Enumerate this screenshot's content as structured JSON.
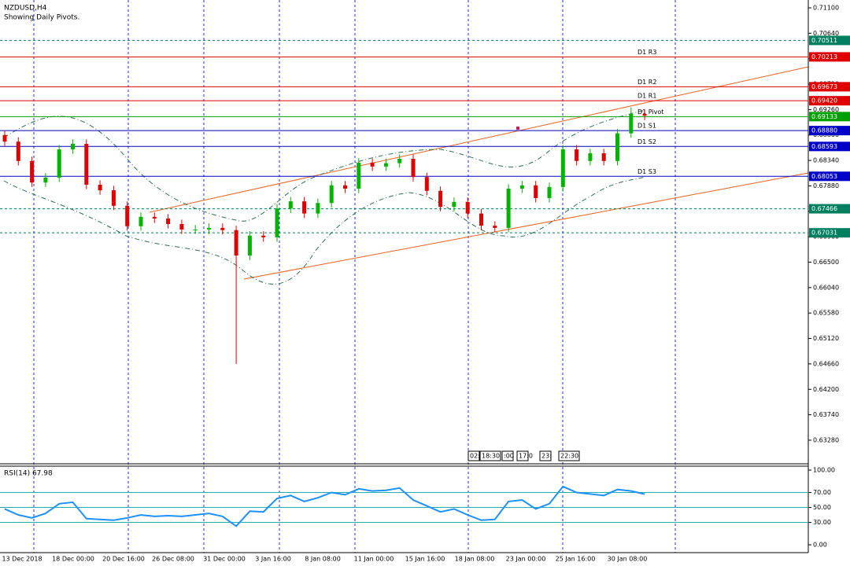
{
  "header": {
    "symbol": "NZDUSD,H4",
    "note": "Showing Daily Pivots."
  },
  "chart_data": {
    "type": "candlestick",
    "up_color": "#00b400",
    "down_color": "#e00000",
    "open": [
      0.688,
      0.6868,
      0.6833,
      0.6794,
      0.6803,
      0.6854,
      0.6864,
      0.679,
      0.678,
      0.6752,
      0.6715,
      0.6732,
      0.6729,
      0.6719,
      0.6709,
      0.6709,
      0.6712,
      0.6708,
      0.6662,
      0.6698,
      0.6695,
      0.6747,
      0.676,
      0.6738,
      0.6757,
      0.6789,
      0.6783,
      0.683,
      0.6823,
      0.6829,
      0.6837,
      0.6804,
      0.6779,
      0.675,
      0.6759,
      0.6738,
      0.6716,
      0.6712,
      0.6783,
      0.6789,
      0.6766,
      0.6786,
      0.6854,
      0.6833,
      0.6847,
      0.6833,
      0.6883,
      0.6918
    ],
    "high": [
      0.6888,
      0.6876,
      0.6841,
      0.6811,
      0.6862,
      0.6872,
      0.6872,
      0.6798,
      0.6788,
      0.676,
      0.674,
      0.674,
      0.6737,
      0.6727,
      0.6717,
      0.672,
      0.672,
      0.6716,
      0.6706,
      0.6706,
      0.6755,
      0.6768,
      0.6768,
      0.6765,
      0.6797,
      0.6797,
      0.6838,
      0.6838,
      0.6837,
      0.6845,
      0.6845,
      0.6812,
      0.6787,
      0.6767,
      0.6767,
      0.6746,
      0.6724,
      0.6791,
      0.6797,
      0.6797,
      0.6794,
      0.6862,
      0.6862,
      0.6855,
      0.6855,
      0.6891,
      0.693,
      0.6926
    ],
    "low": [
      0.686,
      0.6825,
      0.6786,
      0.6786,
      0.6795,
      0.6846,
      0.6782,
      0.6772,
      0.6744,
      0.6707,
      0.6707,
      0.6721,
      0.6711,
      0.6701,
      0.6701,
      0.6701,
      0.67,
      0.6466,
      0.6654,
      0.6687,
      0.6687,
      0.6739,
      0.673,
      0.673,
      0.6749,
      0.6775,
      0.6775,
      0.6815,
      0.6815,
      0.6821,
      0.6796,
      0.6771,
      0.6742,
      0.6742,
      0.673,
      0.6708,
      0.6704,
      0.6704,
      0.6775,
      0.6758,
      0.6758,
      0.6778,
      0.6825,
      0.6825,
      0.6825,
      0.6825,
      0.6875,
      0.6907
    ],
    "close": [
      0.6868,
      0.6833,
      0.6794,
      0.6803,
      0.6854,
      0.6864,
      0.679,
      0.678,
      0.6752,
      0.6715,
      0.6732,
      0.6729,
      0.6719,
      0.6709,
      0.6709,
      0.6712,
      0.6708,
      0.6662,
      0.6698,
      0.6695,
      0.6747,
      0.676,
      0.6738,
      0.6757,
      0.6789,
      0.6783,
      0.683,
      0.6823,
      0.6829,
      0.6837,
      0.6804,
      0.6779,
      0.675,
      0.6759,
      0.6738,
      0.6716,
      0.6712,
      0.6783,
      0.6789,
      0.6766,
      0.6786,
      0.6854,
      0.6833,
      0.6847,
      0.6833,
      0.6883,
      0.6918,
      0.6915
    ],
    "ylim": [
      0.62853,
      0.71242
    ],
    "yticks": [
      {
        "value": 0.711,
        "label": "0.71100"
      },
      {
        "value": 0.7064,
        "label": "0.70640"
      },
      {
        "value": 0.7018,
        "label": "0.70180"
      },
      {
        "value": 0.6972,
        "label": "0.69720"
      },
      {
        "value": 0.6926,
        "label": "0.69260"
      },
      {
        "value": 0.688,
        "label": "0.68800"
      },
      {
        "value": 0.6834,
        "label": "0.68340"
      },
      {
        "value": 0.6788,
        "label": "0.67880"
      },
      {
        "value": 0.6742,
        "label": "0.67420"
      },
      {
        "value": 0.6696,
        "label": "0.66960"
      },
      {
        "value": 0.665,
        "label": "0.66500"
      },
      {
        "value": 0.6604,
        "label": "0.66040"
      },
      {
        "value": 0.6558,
        "label": "0.65580"
      },
      {
        "value": 0.6512,
        "label": "0.65120"
      },
      {
        "value": 0.6466,
        "label": "0.64660"
      },
      {
        "value": 0.642,
        "label": "0.64200"
      },
      {
        "value": 0.6374,
        "label": "0.63740"
      },
      {
        "value": 0.6328,
        "label": "0.63280"
      }
    ],
    "levels": [
      {
        "value": 0.70511,
        "label": "0.70511",
        "style": "dotted",
        "color": "#008060"
      },
      {
        "value": 0.70213,
        "label": "0.70213",
        "name": "D1 R3",
        "style": "solid",
        "color": "#e00000"
      },
      {
        "value": 0.69673,
        "label": "0.69673",
        "name": "D1 R2",
        "style": "solid",
        "color": "#e00000"
      },
      {
        "value": 0.6942,
        "label": "0.69420",
        "name": "D1 R1",
        "style": "solid",
        "color": "#e00000"
      },
      {
        "value": 0.69133,
        "label": "0.69133",
        "name": "D1 Pivot",
        "style": "solid",
        "color": "#00a000"
      },
      {
        "value": 0.6888,
        "label": "0.68880",
        "name": "D1 S1",
        "style": "solid",
        "color": "#0000c8"
      },
      {
        "value": 0.68593,
        "label": "0.68593",
        "name": "D1 S2",
        "style": "solid",
        "color": "#0000c8"
      },
      {
        "value": 0.68053,
        "label": "0.68053",
        "name": "D1 S3",
        "style": "solid",
        "color": "#0000c8"
      },
      {
        "value": 0.67466,
        "label": "0.67466",
        "style": "dotted",
        "color": "#008060"
      },
      {
        "value": 0.67031,
        "label": "0.67031",
        "style": "dotted",
        "color": "#008060"
      }
    ],
    "x_labels": [
      "13 Dec 2018",
      "18 Dec 00:00",
      "20 Dec 16:00",
      "26 Dec 08:00",
      "31 Dec 00:00",
      "3 Jan 16:00",
      "8 Jan 08:00",
      "11 Jan 00:00",
      "15 Jan 16:00",
      "18 Jan 08:00",
      "23 Jan 00:00",
      "25 Jan 16:00",
      "30 Jan 08:00"
    ],
    "time_labels": [
      "02:",
      "18:30",
      ":00",
      "17:0",
      "23:",
      "22:30"
    ],
    "rsi": {
      "label": "RSI(14) 67.98",
      "color": "#1e90ff",
      "values": [
        48,
        40,
        36,
        42,
        55,
        57,
        35,
        34,
        33,
        36,
        40,
        38,
        39,
        38,
        40,
        42,
        38,
        25,
        45,
        44,
        62,
        66,
        58,
        63,
        70,
        67,
        75,
        72,
        73,
        76,
        60,
        52,
        44,
        48,
        40,
        33,
        34,
        58,
        60,
        48,
        55,
        78,
        70,
        68,
        66,
        74,
        72,
        67.98
      ],
      "ylim": [
        -10.5,
        105.3
      ],
      "yticks": [
        {
          "value": 100,
          "label": "100.00"
        },
        {
          "value": 70,
          "label": "70.00"
        },
        {
          "value": 50,
          "label": "50.00"
        },
        {
          "value": 30,
          "label": "30.00"
        },
        {
          "value": 0,
          "label": "0.00"
        }
      ],
      "levels": [
        70,
        50,
        30
      ]
    }
  }
}
